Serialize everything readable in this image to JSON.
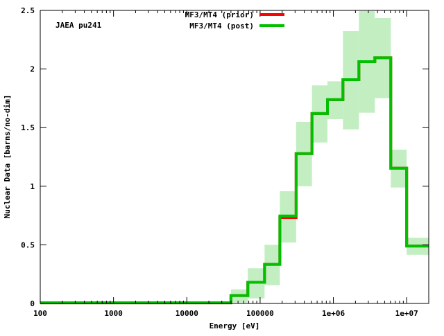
{
  "chart_data": {
    "type": "line",
    "title": "",
    "annotation": "JAEA pu241",
    "xlabel": "Energy [eV]",
    "ylabel": "Nuclear Data [barns/no-dim]",
    "xscale": "log",
    "xlim": [
      100,
      20000000
    ],
    "ylim": [
      0,
      2.5
    ],
    "xticks": [
      {
        "v": 100,
        "label": "100"
      },
      {
        "v": 1000,
        "label": "1000"
      },
      {
        "v": 10000,
        "label": "10000"
      },
      {
        "v": 100000,
        "label": "100000"
      },
      {
        "v": 1000000,
        "label": "1e+06"
      },
      {
        "v": 10000000,
        "label": "1e+07"
      }
    ],
    "yticks": [
      {
        "v": 0,
        "label": "0"
      },
      {
        "v": 0.5,
        "label": "0.5"
      },
      {
        "v": 1,
        "label": "1"
      },
      {
        "v": 1.5,
        "label": "1.5"
      },
      {
        "v": 2,
        "label": "2"
      },
      {
        "v": 2.5,
        "label": "2.5"
      }
    ],
    "legend_position": "top-center",
    "bin_edges": [
      100,
      40000,
      68000,
      115000,
      186000,
      310000,
      510000,
      830000,
      1350000,
      2230000,
      3680000,
      6070000,
      10000000,
      20000000
    ],
    "series": [
      {
        "name": "MF3/MT4 (prior)",
        "color": "#ff0000",
        "values": [
          0.005,
          0.067,
          0.18,
          0.333,
          0.733,
          1.278,
          1.62,
          1.738,
          1.909,
          2.063,
          2.096,
          1.154,
          0.49
        ]
      },
      {
        "name": "MF3/MT4 (post)",
        "color": "#00c000",
        "values": [
          0.005,
          0.067,
          0.18,
          0.333,
          0.746,
          1.278,
          1.62,
          1.738,
          1.909,
          2.063,
          2.096,
          1.154,
          0.49
        ]
      }
    ],
    "uncertainty_band": {
      "color": "#c2eec2",
      "lower": [
        0.0,
        0.008,
        0.043,
        0.156,
        0.52,
        1.0,
        1.373,
        1.572,
        1.485,
        1.627,
        1.751,
        0.989,
        0.415
      ],
      "upper": [
        0.01,
        0.12,
        0.3,
        0.5,
        0.957,
        1.549,
        1.86,
        1.895,
        2.323,
        2.494,
        2.435,
        1.312,
        0.56
      ]
    }
  }
}
